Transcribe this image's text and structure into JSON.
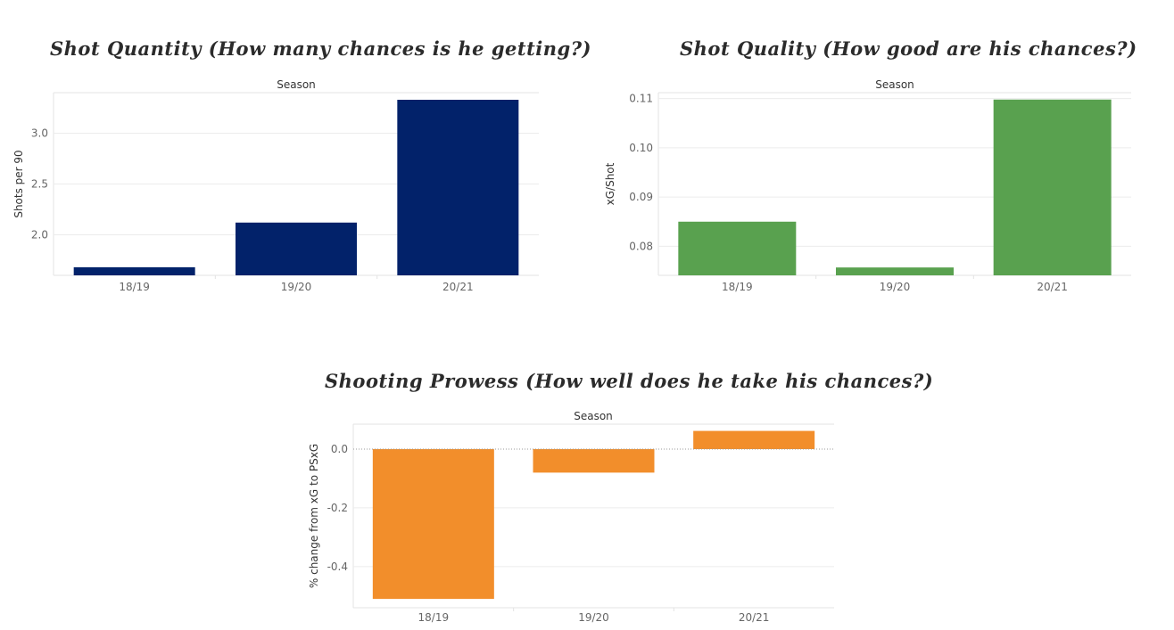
{
  "chart_data": [
    {
      "type": "bar",
      "title": "Shot Quantity (How many chances is he getting?)",
      "xlabel": "Season",
      "ylabel": "Shots per 90",
      "categories": [
        "18/19",
        "19/20",
        "20/21"
      ],
      "values": [
        1.68,
        2.12,
        3.33
      ],
      "ylim": [
        1.6,
        3.4
      ],
      "yticks": [
        2.0,
        2.5,
        3.0
      ],
      "tick_format": "1",
      "color": "#02226a",
      "grid": true
    },
    {
      "type": "bar",
      "title": "Shot Quality (How good are his chances?)",
      "xlabel": "Season",
      "ylabel": "xG/Shot",
      "categories": [
        "18/19",
        "19/20",
        "20/21"
      ],
      "values": [
        0.085,
        0.0757,
        0.1098
      ],
      "ylim": [
        0.0741,
        0.1112
      ],
      "yticks": [
        0.08,
        0.09,
        0.1,
        0.11
      ],
      "tick_format": "2",
      "color": "#59a14f",
      "grid": true
    },
    {
      "type": "bar",
      "title": "Shooting Prowess (How well does he take his chances?)",
      "xlabel": "Season",
      "ylabel": "% change from xG to PSxG",
      "categories": [
        "18/19",
        "19/20",
        "20/21"
      ],
      "values": [
        -0.51,
        -0.08,
        0.062
      ],
      "ylim": [
        -0.54,
        0.085
      ],
      "yticks": [
        0.0,
        -0.2,
        -0.4
      ],
      "tick_format": "1",
      "color": "#f28e2b",
      "grid": true,
      "zero_line": true
    }
  ]
}
